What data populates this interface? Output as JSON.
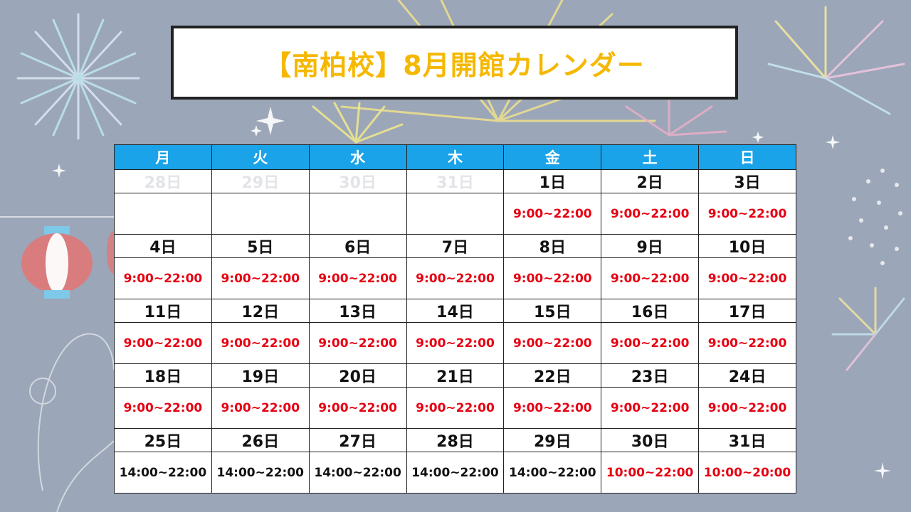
{
  "title": "【南柏校】8月開館カレンダー",
  "colors": {
    "background": "#9ba6b8",
    "header": "#1aa3e8",
    "title": "#f5b800",
    "hours_red": "#e60012",
    "hours_black": "#111111"
  },
  "weekdays": [
    "月",
    "火",
    "水",
    "木",
    "金",
    "土",
    "日"
  ],
  "weeks": [
    {
      "dates": [
        {
          "label": "28日",
          "faded": true
        },
        {
          "label": "29日",
          "faded": true
        },
        {
          "label": "30日",
          "faded": true
        },
        {
          "label": "31日",
          "faded": true
        },
        {
          "label": "1日",
          "faded": false
        },
        {
          "label": "2日",
          "faded": false
        },
        {
          "label": "3日",
          "faded": false
        }
      ],
      "hours": [
        {
          "text": "",
          "color": "red"
        },
        {
          "text": "",
          "color": "red"
        },
        {
          "text": "",
          "color": "red"
        },
        {
          "text": "",
          "color": "red"
        },
        {
          "text": "9:00~22:00",
          "color": "red"
        },
        {
          "text": "9:00~22:00",
          "color": "red"
        },
        {
          "text": "9:00~22:00",
          "color": "red"
        }
      ]
    },
    {
      "dates": [
        {
          "label": "4日",
          "faded": false
        },
        {
          "label": "5日",
          "faded": false
        },
        {
          "label": "6日",
          "faded": false
        },
        {
          "label": "7日",
          "faded": false
        },
        {
          "label": "8日",
          "faded": false
        },
        {
          "label": "9日",
          "faded": false
        },
        {
          "label": "10日",
          "faded": false
        }
      ],
      "hours": [
        {
          "text": "9:00~22:00",
          "color": "red"
        },
        {
          "text": "9:00~22:00",
          "color": "red"
        },
        {
          "text": "9:00~22:00",
          "color": "red"
        },
        {
          "text": "9:00~22:00",
          "color": "red"
        },
        {
          "text": "9:00~22:00",
          "color": "red"
        },
        {
          "text": "9:00~22:00",
          "color": "red"
        },
        {
          "text": "9:00~22:00",
          "color": "red"
        }
      ]
    },
    {
      "dates": [
        {
          "label": "11日",
          "faded": false
        },
        {
          "label": "12日",
          "faded": false
        },
        {
          "label": "13日",
          "faded": false
        },
        {
          "label": "14日",
          "faded": false
        },
        {
          "label": "15日",
          "faded": false
        },
        {
          "label": "16日",
          "faded": false
        },
        {
          "label": "17日",
          "faded": false
        }
      ],
      "hours": [
        {
          "text": "9:00~22:00",
          "color": "red"
        },
        {
          "text": "9:00~22:00",
          "color": "red"
        },
        {
          "text": "9:00~22:00",
          "color": "red"
        },
        {
          "text": "9:00~22:00",
          "color": "red"
        },
        {
          "text": "9:00~22:00",
          "color": "red"
        },
        {
          "text": "9:00~22:00",
          "color": "red"
        },
        {
          "text": "9:00~22:00",
          "color": "red"
        }
      ]
    },
    {
      "dates": [
        {
          "label": "18日",
          "faded": false
        },
        {
          "label": "19日",
          "faded": false
        },
        {
          "label": "20日",
          "faded": false
        },
        {
          "label": "21日",
          "faded": false
        },
        {
          "label": "22日",
          "faded": false
        },
        {
          "label": "23日",
          "faded": false
        },
        {
          "label": "24日",
          "faded": false
        }
      ],
      "hours": [
        {
          "text": "9:00~22:00",
          "color": "red"
        },
        {
          "text": "9:00~22:00",
          "color": "red"
        },
        {
          "text": "9:00~22:00",
          "color": "red"
        },
        {
          "text": "9:00~22:00",
          "color": "red"
        },
        {
          "text": "9:00~22:00",
          "color": "red"
        },
        {
          "text": "9:00~22:00",
          "color": "red"
        },
        {
          "text": "9:00~22:00",
          "color": "red"
        }
      ]
    },
    {
      "dates": [
        {
          "label": "25日",
          "faded": false
        },
        {
          "label": "26日",
          "faded": false
        },
        {
          "label": "27日",
          "faded": false
        },
        {
          "label": "28日",
          "faded": false
        },
        {
          "label": "29日",
          "faded": false
        },
        {
          "label": "30日",
          "faded": false
        },
        {
          "label": "31日",
          "faded": false
        }
      ],
      "hours": [
        {
          "text": "14:00~22:00",
          "color": "black"
        },
        {
          "text": "14:00~22:00",
          "color": "black"
        },
        {
          "text": "14:00~22:00",
          "color": "black"
        },
        {
          "text": "14:00~22:00",
          "color": "black"
        },
        {
          "text": "14:00~22:00",
          "color": "black"
        },
        {
          "text": "10:00~22:00",
          "color": "red"
        },
        {
          "text": "10:00~20:00",
          "color": "red"
        }
      ]
    }
  ]
}
